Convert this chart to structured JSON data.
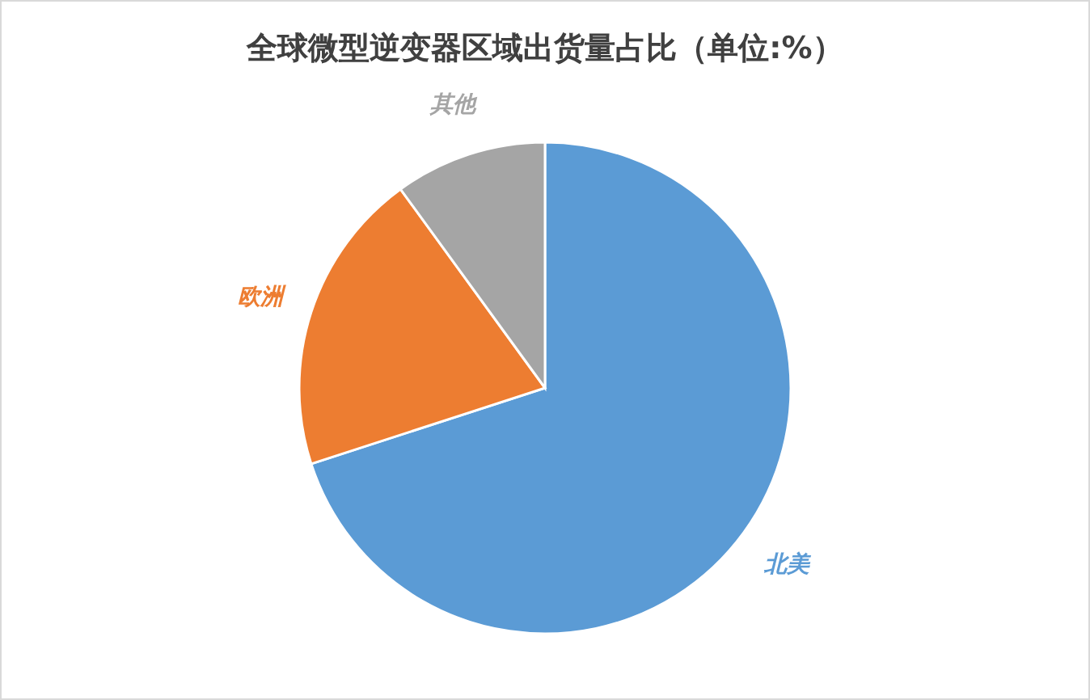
{
  "chart_data": {
    "type": "pie",
    "title": "全球微型逆变器区域出货量占比（单位:%）",
    "categories": [
      "北美",
      "欧洲",
      "其他"
    ],
    "values": [
      70,
      20,
      10
    ],
    "colors": [
      "#5b9bd5",
      "#ed7d31",
      "#a5a5a5"
    ]
  }
}
